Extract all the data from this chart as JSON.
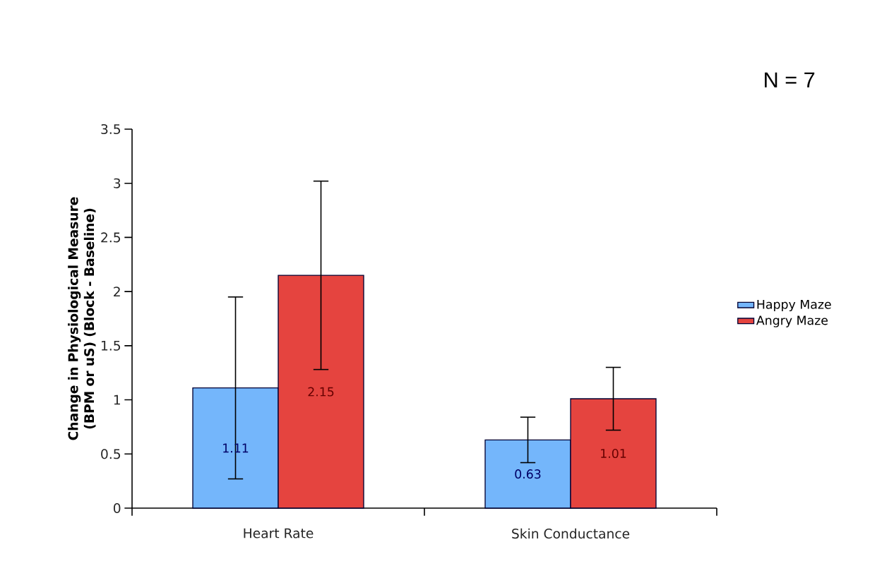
{
  "chart_data": {
    "type": "bar",
    "ylabel": "Change in Physiological Measure (BPM or uS) (Block - Baseline)",
    "categories": [
      "Heart Rate",
      "Skin Conductance"
    ],
    "series": [
      {
        "name": "Happy Maze",
        "color": "#74b6fb",
        "values": [
          1.11,
          0.63
        ],
        "errors": [
          0.84,
          0.21
        ]
      },
      {
        "name": "Angry Maze",
        "color": "#e5443f",
        "values": [
          2.15,
          1.01
        ],
        "errors": [
          0.87,
          0.29
        ]
      }
    ],
    "ylim": [
      0,
      3.5
    ],
    "yticks": [
      0,
      0.5,
      1,
      1.5,
      2,
      2.5,
      3,
      3.5
    ],
    "data_labels": true,
    "legend": "right",
    "grid": false,
    "annotations": [
      "N = 7"
    ]
  }
}
